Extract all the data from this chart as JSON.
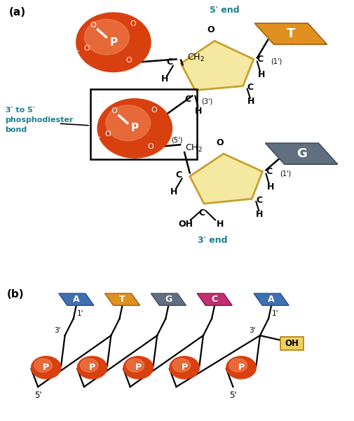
{
  "bg_color": "#ffffff",
  "orange_dark": "#D94010",
  "orange_mid": "#E86030",
  "orange_light": "#F08050",
  "yellow_fill": "#F5E8A0",
  "yellow_edge": "#C8A030",
  "blue_label": "#1A8090",
  "base_T_color": "#E09020",
  "base_T_edge": "#A06010",
  "base_G_color": "#607080",
  "base_G_edge": "#405060",
  "base_A_color": "#4070B0",
  "base_A_edge": "#2050A0",
  "base_C_color": "#C03070",
  "base_C_edge": "#901050",
  "text_black": "#000000",
  "text_white": "#ffffff",
  "five_end": "5′ end",
  "three_end": "3′ end",
  "phosphodiester": "3′ to 5′\nphosphodiester\nbond",
  "label_a": "(a)",
  "label_b": "(b)"
}
